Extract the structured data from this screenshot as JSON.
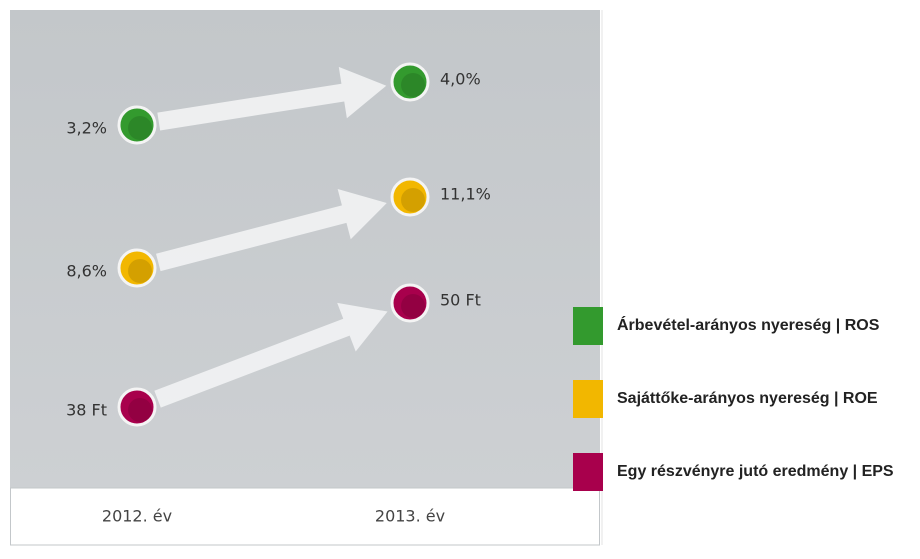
{
  "columns": [
    "2012. év",
    "2013. év"
  ],
  "metrics": [
    {
      "name": "Árbevétel-arányos nyereség | ROS",
      "color": "#339a2e",
      "values": [
        "3,2%",
        "4,0%"
      ]
    },
    {
      "name": "Sajáttőke-arányos nyereség | ROE",
      "color": "#f2b700",
      "values": [
        "8,6%",
        "11,1%"
      ]
    },
    {
      "name": "Egy részvényre jutó eredmény | EPS",
      "color": "#a8004c",
      "values": [
        "38 Ft",
        "50 Ft"
      ]
    }
  ]
}
